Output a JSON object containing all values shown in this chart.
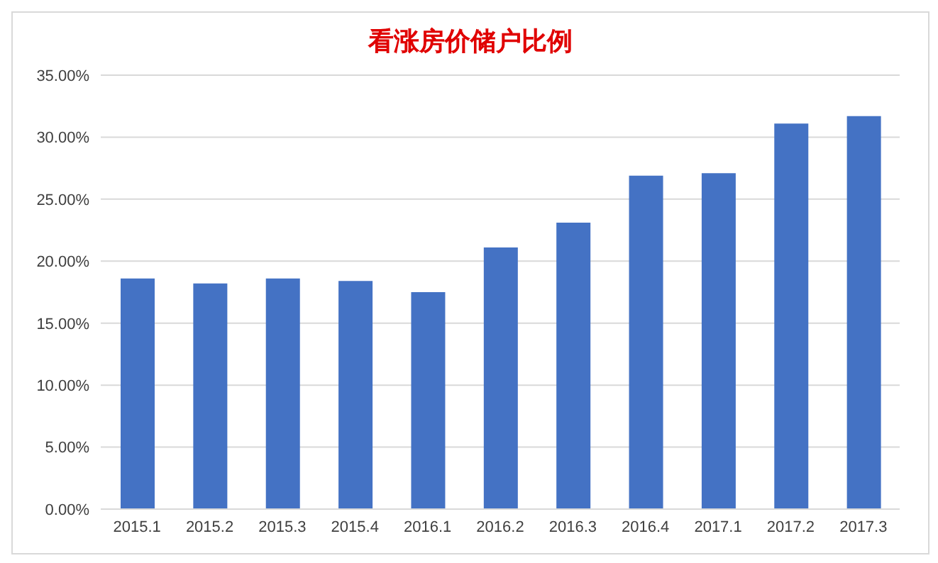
{
  "chart_data": {
    "type": "bar",
    "title": "看涨房价储户比例",
    "categories": [
      "2015.1",
      "2015.2",
      "2015.3",
      "2015.4",
      "2016.1",
      "2016.2",
      "2016.3",
      "2016.4",
      "2017.1",
      "2017.2",
      "2017.3"
    ],
    "values": [
      18.6,
      18.2,
      18.6,
      18.4,
      17.5,
      21.1,
      23.1,
      26.9,
      27.1,
      31.1,
      31.7
    ],
    "color": "#4472c4",
    "ylim": [
      0,
      35
    ],
    "yticks": [
      {
        "value": 0,
        "label": "0.00%"
      },
      {
        "value": 5,
        "label": "5.00%"
      },
      {
        "value": 10,
        "label": "10.00%"
      },
      {
        "value": 15,
        "label": "15.00%"
      },
      {
        "value": 20,
        "label": "20.00%"
      },
      {
        "value": 25,
        "label": "25.00%"
      },
      {
        "value": 30,
        "label": "30.00%"
      },
      {
        "value": 35,
        "label": "35.00%"
      }
    ],
    "grid": "y"
  }
}
